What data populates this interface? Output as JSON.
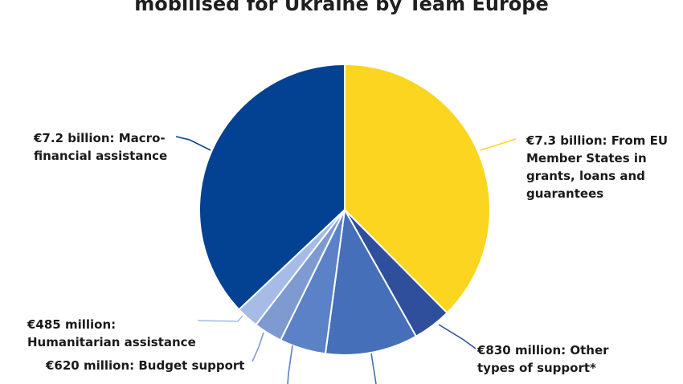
{
  "chart_data": {
    "type": "pie",
    "title": "mobilised for Ukraine by Team Europe",
    "slices": [
      {
        "label_lines": [
          "€7.3 billion: From EU",
          "Member States in",
          "grants, loans and",
          "guarantees"
        ],
        "value": 7.3,
        "unit": "billion",
        "color": "#FCD520"
      },
      {
        "label_lines": [
          "€830 million: Other",
          "types of support*"
        ],
        "value": 0.83,
        "unit": "billion",
        "color": "#2F4E9C"
      },
      {
        "label_lines": [],
        "value": 2.0,
        "unit": "billion",
        "color": "#456FB8"
      },
      {
        "label_lines": [],
        "value": 1.0,
        "unit": "billion",
        "color": "#5B82C6"
      },
      {
        "label_lines": [
          "€620 million: Budget support"
        ],
        "value": 0.62,
        "unit": "billion",
        "color": "#7D9BD1"
      },
      {
        "label_lines": [
          "€485 million:",
          "Humanitarian assistance"
        ],
        "value": 0.485,
        "unit": "billion",
        "color": "#A6BCE6"
      },
      {
        "label_lines": [
          "€7.2 billion: Macro-",
          "financial assistance"
        ],
        "value": 7.2,
        "unit": "billion",
        "color": "#034192"
      }
    ],
    "start_angle_deg": 0,
    "direction": "clockwise"
  }
}
